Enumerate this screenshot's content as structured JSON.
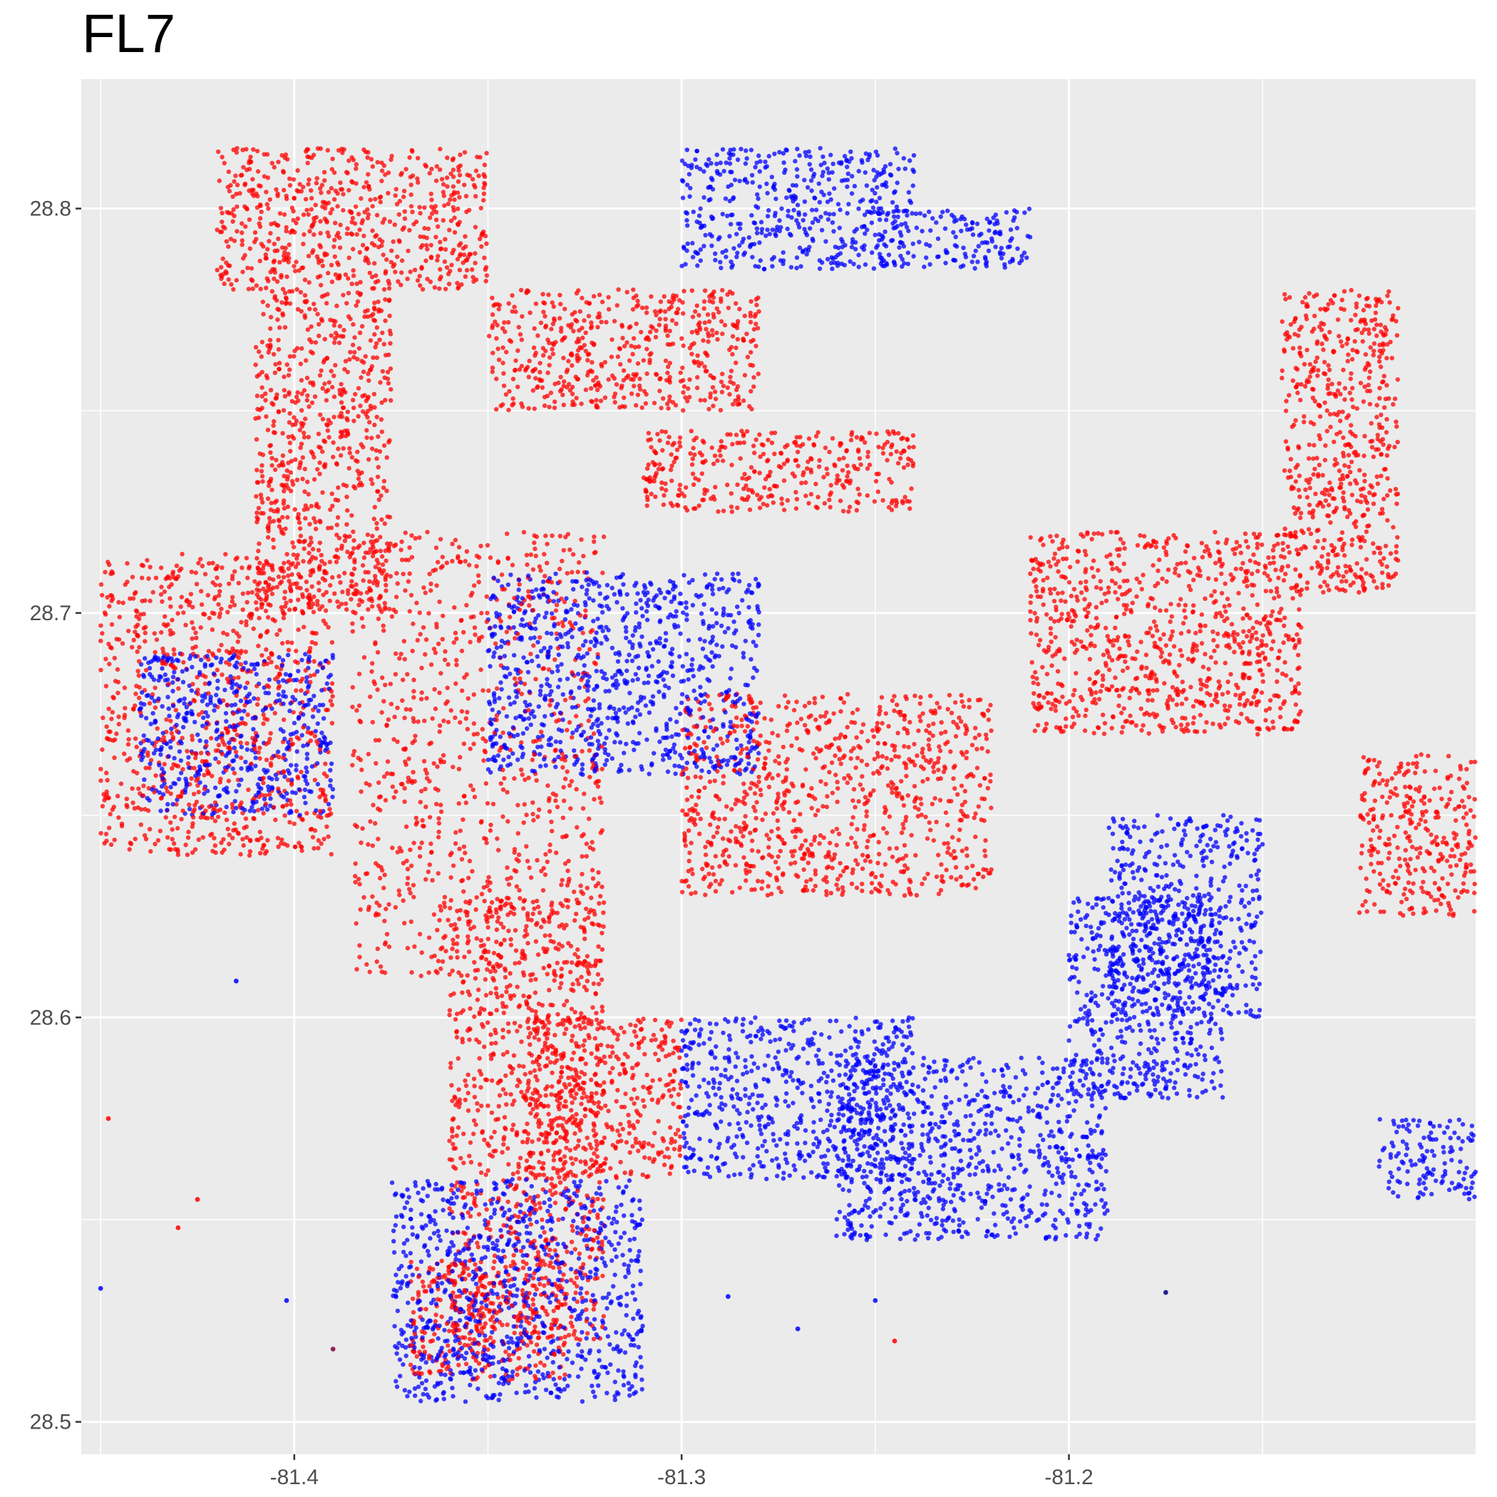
{
  "chart_data": {
    "type": "scatter",
    "title": "FL7",
    "xlabel": "",
    "ylabel": "",
    "xlim": [
      -81.455,
      -81.095
    ],
    "ylim": [
      28.492,
      28.832
    ],
    "x_ticks": [
      -81.4,
      -81.3,
      -81.2
    ],
    "x_tick_labels": [
      "-81.4",
      "-81.3",
      "-81.2"
    ],
    "y_ticks": [
      28.5,
      28.6,
      28.7,
      28.8
    ],
    "y_tick_labels": [
      "28.5",
      "28.6",
      "28.7",
      "28.8"
    ],
    "grid": true,
    "legend": "none",
    "series": [
      {
        "color": "#ff0000",
        "clusters": [
          {
            "x": [
              -81.42,
              -81.35
            ],
            "y": [
              28.78,
              28.815
            ]
          },
          {
            "x": [
              -81.41,
              -81.375
            ],
            "y": [
              28.7,
              28.78
            ]
          },
          {
            "x": [
              -81.45,
              -81.39
            ],
            "y": [
              28.64,
              28.715
            ]
          },
          {
            "x": [
              -81.385,
              -81.32
            ],
            "y": [
              28.61,
              28.72
            ]
          },
          {
            "x": [
              -81.36,
              -81.32
            ],
            "y": [
              28.52,
              28.63
            ]
          },
          {
            "x": [
              -81.3,
              -81.22
            ],
            "y": [
              28.63,
              28.68
            ]
          },
          {
            "x": [
              -81.145,
              -81.115
            ],
            "y": [
              28.705,
              28.78
            ]
          },
          {
            "x": [
              -81.21,
              -81.14
            ],
            "y": [
              28.67,
              28.72
            ]
          },
          {
            "x": [
              -81.125,
              -81.095
            ],
            "y": [
              28.625,
              28.665
            ]
          },
          {
            "x": [
              -81.34,
              -81.3
            ],
            "y": [
              28.56,
              28.6
            ]
          },
          {
            "x": [
              -81.37,
              -81.33
            ],
            "y": [
              28.51,
              28.54
            ]
          },
          {
            "x": [
              -81.35,
              -81.28
            ],
            "y": [
              28.75,
              28.78
            ]
          },
          {
            "x": [
              -81.31,
              -81.24
            ],
            "y": [
              28.725,
              28.745
            ]
          }
        ]
      },
      {
        "color": "#0000ff",
        "clusters": [
          {
            "x": [
              -81.3,
              -81.24
            ],
            "y": [
              28.785,
              28.815
            ]
          },
          {
            "x": [
              -81.3,
              -81.24
            ],
            "y": [
              28.56,
              28.6
            ]
          },
          {
            "x": [
              -81.26,
              -81.19
            ],
            "y": [
              28.545,
              28.59
            ]
          },
          {
            "x": [
              -81.375,
              -81.31
            ],
            "y": [
              28.505,
              28.56
            ]
          },
          {
            "x": [
              -81.35,
              -81.28
            ],
            "y": [
              28.66,
              28.71
            ]
          },
          {
            "x": [
              -81.2,
              -81.16
            ],
            "y": [
              28.58,
              28.63
            ]
          },
          {
            "x": [
              -81.25,
              -81.21
            ],
            "y": [
              28.785,
              28.8
            ]
          },
          {
            "x": [
              -81.19,
              -81.15
            ],
            "y": [
              28.6,
              28.65
            ]
          },
          {
            "x": [
              -81.44,
              -81.39
            ],
            "y": [
              28.65,
              28.69
            ]
          },
          {
            "x": [
              -81.12,
              -81.095
            ],
            "y": [
              28.555,
              28.575
            ]
          }
        ]
      }
    ],
    "outliers": [
      {
        "x": -81.448,
        "y": 28.575,
        "color": "#ff0000"
      },
      {
        "x": -81.43,
        "y": 28.548,
        "color": "#ff0000"
      },
      {
        "x": -81.45,
        "y": 28.533,
        "color": "#0000ff"
      },
      {
        "x": -81.402,
        "y": 28.53,
        "color": "#0000ff"
      },
      {
        "x": -81.39,
        "y": 28.518,
        "color": "#800040"
      },
      {
        "x": -81.425,
        "y": 28.555,
        "color": "#ff0000"
      },
      {
        "x": -81.415,
        "y": 28.609,
        "color": "#0000ff"
      },
      {
        "x": -81.175,
        "y": 28.532,
        "color": "#000080"
      },
      {
        "x": -81.245,
        "y": 28.52,
        "color": "#ff0000"
      },
      {
        "x": -81.27,
        "y": 28.523,
        "color": "#0000ff"
      },
      {
        "x": -81.288,
        "y": 28.531,
        "color": "#0000ff"
      },
      {
        "x": -81.25,
        "y": 28.53,
        "color": "#0000ff"
      }
    ]
  }
}
